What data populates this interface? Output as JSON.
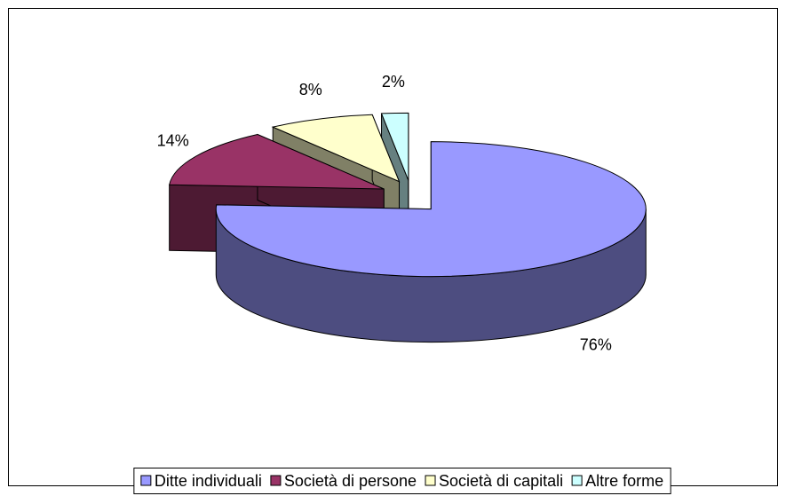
{
  "chart_data": {
    "type": "pie3d",
    "categories": [
      "Ditte individuali",
      "Società di persone",
      "Società di capitali",
      "Altre forme"
    ],
    "values": [
      76,
      14,
      8,
      2
    ],
    "value_labels": [
      "76%",
      "14%",
      "8%",
      "2%"
    ],
    "colors": [
      "#9999ff",
      "#993366",
      "#ffffcc",
      "#ccffff"
    ],
    "exploded": true,
    "legend": "bottom"
  }
}
